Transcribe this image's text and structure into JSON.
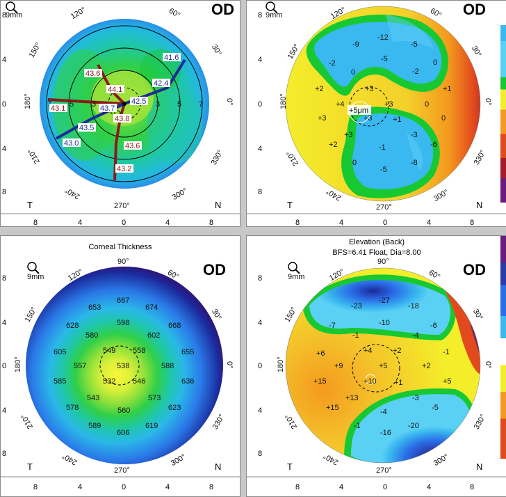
{
  "zoom_label": "9mm",
  "eye_label": "OD",
  "side_labels": {
    "t": "T",
    "n": "N"
  },
  "degree_labels": [
    "90°",
    "120°",
    "150°",
    "180°",
    "210°",
    "240°",
    "270°",
    "300°",
    "330°",
    "0°",
    "30°",
    "60°"
  ],
  "x_ticks": [
    "8",
    "4",
    "0",
    "4",
    "8"
  ],
  "y_ticks": [
    "8",
    "4",
    "0",
    "4",
    "8"
  ],
  "colors": {
    "teal": "#1fc7b3",
    "green": "#18c832",
    "lime": "#8fe03a",
    "yellow": "#f4ee2a",
    "orange": "#f49a1e",
    "red": "#e24a1e",
    "blue": "#2a6ee8",
    "navy": "#1b2a9c",
    "purple": "#6a1c7e",
    "cyan": "#3ab8f0"
  },
  "panels": {
    "top_left": {
      "title": "",
      "subtitle": "",
      "ring_labels": [
        "3",
        "5",
        "7",
        "3",
        "5",
        "7"
      ],
      "steep_values": [
        "43.6",
        "44.1",
        "43.8",
        "43.6",
        "43.2",
        "43.1"
      ],
      "flat_values": [
        "41.6",
        "42.4",
        "42.5",
        "43.7",
        "43.5",
        "43.0"
      ]
    },
    "top_right": {
      "title": "",
      "subtitle": "",
      "values": [
        "-12",
        "-9",
        "-5",
        "-5",
        "-2",
        "-2",
        "0",
        "0",
        "+2",
        "+3",
        "+1",
        "+4",
        "+3",
        "0",
        "+3",
        "+3",
        "+1",
        "0",
        "-3",
        "+3",
        "+2",
        "-1",
        "-6",
        "0",
        "-5",
        "-8"
      ],
      "center_label": "+5μm"
    },
    "bottom_left": {
      "title": "Corneal Thickness",
      "subtitle": "",
      "values": [
        "667",
        "653",
        "674",
        "598",
        "628",
        "668",
        "580",
        "602",
        "605",
        "549",
        "558",
        "655",
        "557",
        "538",
        "588",
        "585",
        "532",
        "546",
        "636",
        "543",
        "573",
        "578",
        "560",
        "623",
        "589",
        "606",
        "619"
      ]
    },
    "bottom_right": {
      "title": "Elevation (Back)",
      "subtitle": "BFS=6.41 Float, Dia=8.00",
      "values": [
        "-27",
        "-23",
        "-18",
        "-10",
        "-7",
        "-6",
        "-1",
        "-4",
        "+4",
        "+2",
        "+6",
        "-1",
        "+9",
        "+5",
        "+2",
        "+5",
        "+15",
        "+10",
        "+1",
        "+13",
        "-3",
        "+15",
        "-5",
        "-4",
        "-1",
        "-20",
        "-16"
      ]
    }
  }
}
